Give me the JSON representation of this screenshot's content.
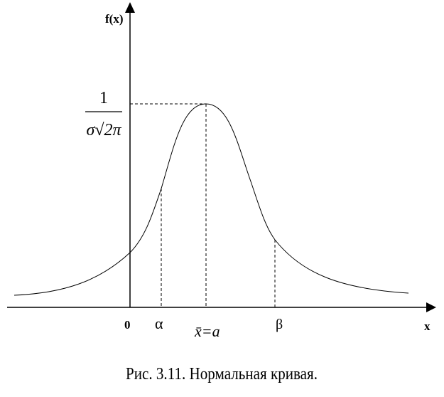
{
  "axes": {
    "y_label": "f(x)",
    "x_label": "x",
    "origin": "0"
  },
  "marks": {
    "alpha": "α",
    "mean": "x̄=a",
    "beta": "β"
  },
  "peak": {
    "numerator": "1",
    "denominator": "σ√2π"
  },
  "caption": "Рис. 3.11. Нормальная кривая."
}
